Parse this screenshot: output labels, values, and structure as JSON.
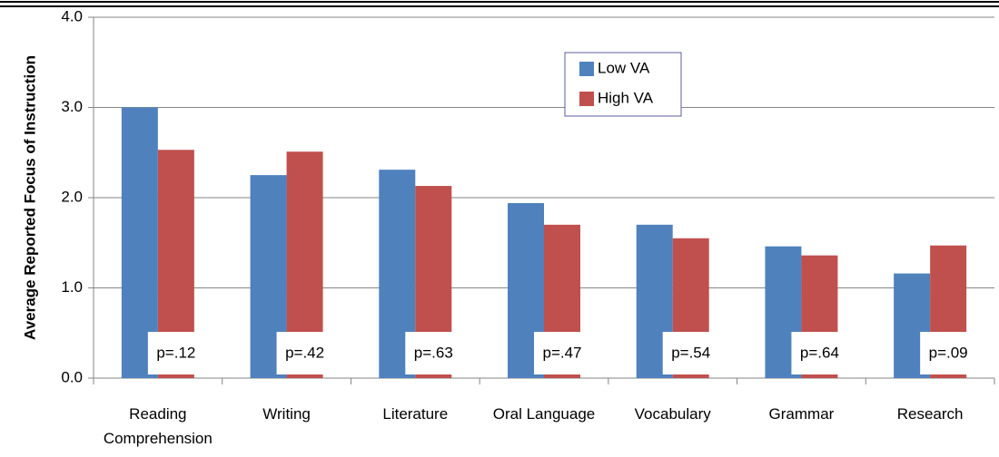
{
  "chart_data": {
    "type": "bar",
    "y_label": "Average Reported Focus of Instruction",
    "categories": [
      "Reading Comprehension",
      "Writing",
      "Literature",
      "Oral Language",
      "Vocabulary",
      "Grammar",
      "Research"
    ],
    "series": [
      {
        "name": "Low VA",
        "color": "#4f81bd",
        "values": [
          3.0,
          2.25,
          2.31,
          1.94,
          1.7,
          1.46,
          1.16
        ]
      },
      {
        "name": "High VA",
        "color": "#c0504d",
        "values": [
          2.53,
          2.51,
          2.13,
          1.7,
          1.55,
          1.36,
          1.47
        ]
      }
    ],
    "annotations": [
      "p=.12",
      "p=.42",
      "p=.63",
      "p=.47",
      "p=.54",
      "p=.64",
      "p=.09"
    ],
    "ylim": [
      0,
      4
    ],
    "yticks": [
      {
        "value": 0,
        "label": "0.0"
      },
      {
        "value": 1,
        "label": "1.0"
      },
      {
        "value": 2,
        "label": "2.0"
      },
      {
        "value": 3,
        "label": "3.0"
      },
      {
        "value": 4,
        "label": "4.0"
      }
    ],
    "grid": true,
    "legend": "top-center"
  }
}
